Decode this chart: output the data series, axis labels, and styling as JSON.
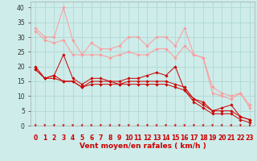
{
  "background_color": "#cdecea",
  "grid_color": "#b0d8d4",
  "line_color_dark": "#cc0000",
  "line_color_light": "#ff9999",
  "xlabel": "Vent moyen/en rafales ( km/h )",
  "xlabel_color": "#cc0000",
  "xlabel_fontsize": 6.5,
  "ylabel_ticks": [
    0,
    5,
    10,
    15,
    20,
    25,
    30,
    35,
    40
  ],
  "xlim": [
    -0.5,
    23.5
  ],
  "ylim": [
    0,
    42
  ],
  "xtick_labels": [
    "0",
    "1",
    "2",
    "3",
    "4",
    "5",
    "6",
    "7",
    "8",
    "9",
    "10",
    "11",
    "12",
    "13",
    "14",
    "15",
    "16",
    "17",
    "18",
    "19",
    "20",
    "21",
    "22",
    "23"
  ],
  "lines_dark": [
    [
      20,
      16,
      17,
      24,
      16,
      14,
      16,
      16,
      15,
      15,
      16,
      16,
      17,
      18,
      17,
      20,
      12,
      9,
      8,
      5,
      6,
      7,
      3,
      2
    ],
    [
      19,
      16,
      17,
      15,
      15,
      13,
      15,
      15,
      15,
      14,
      15,
      15,
      15,
      15,
      15,
      14,
      13,
      9,
      7,
      5,
      5,
      5,
      3,
      2
    ],
    [
      19,
      16,
      16,
      15,
      15,
      13,
      14,
      14,
      14,
      14,
      14,
      14,
      14,
      14,
      14,
      13,
      12,
      8,
      6,
      4,
      4,
      4,
      2,
      1
    ]
  ],
  "lines_light": [
    [
      33,
      30,
      30,
      40,
      29,
      24,
      28,
      26,
      26,
      27,
      30,
      30,
      27,
      30,
      30,
      27,
      33,
      24,
      23,
      13,
      11,
      10,
      11,
      7
    ],
    [
      32,
      29,
      28,
      29,
      24,
      24,
      24,
      24,
      23,
      24,
      25,
      24,
      24,
      26,
      26,
      23,
      27,
      24,
      23,
      11,
      10,
      9,
      11,
      6
    ]
  ],
  "arrow_color": "#cc0000",
  "tick_fontsize": 5.5,
  "ytick_fontsize": 5.5
}
